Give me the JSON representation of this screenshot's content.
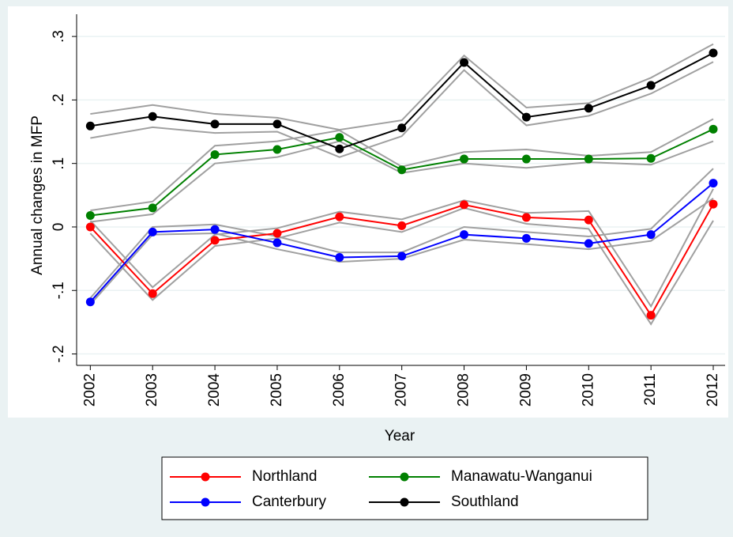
{
  "chart_data": {
    "type": "line",
    "x_label": "Year",
    "y_label": "Annual changes in MFP",
    "x": [
      2002,
      2003,
      2004,
      2005,
      2006,
      2007,
      2008,
      2009,
      2010,
      2011,
      2012
    ],
    "xlim": [
      2001.78,
      2012.19
    ],
    "xticks": [
      2002,
      2003,
      2004,
      2005,
      2006,
      2007,
      2008,
      2009,
      2010,
      2011,
      2012
    ],
    "ylim": [
      -0.218,
      0.335
    ],
    "yticks": [
      {
        "value": -0.2,
        "label": "-.2"
      },
      {
        "value": -0.1,
        "label": "-.1"
      },
      0,
      {
        "value": 0.1,
        "label": ".1"
      },
      {
        "value": 0.2,
        "label": ".2"
      },
      {
        "value": 0.3,
        "label": ".3"
      }
    ],
    "grid": true,
    "band_color": "#a0a0a0",
    "legend": "bottom",
    "series": [
      {
        "name": "Northland",
        "color": "#ff0000",
        "values": [
          0.0,
          -0.105,
          -0.021,
          -0.01,
          0.016,
          0.002,
          0.035,
          0.015,
          0.011,
          -0.139,
          0.036
        ],
        "lower": [
          -0.01,
          -0.115,
          -0.03,
          -0.018,
          0.007,
          -0.008,
          0.03,
          0.005,
          -0.003,
          -0.153,
          0.01
        ],
        "upper": [
          0.01,
          -0.095,
          -0.012,
          -0.002,
          0.024,
          0.012,
          0.042,
          0.022,
          0.025,
          -0.125,
          0.06
        ]
      },
      {
        "name": "Manawatu-Wanganui",
        "color": "#008000",
        "values": [
          0.018,
          0.03,
          0.114,
          0.122,
          0.141,
          0.09,
          0.107,
          0.107,
          0.107,
          0.108,
          0.154
        ],
        "lower": [
          0.008,
          0.02,
          0.1,
          0.11,
          0.135,
          0.085,
          0.1,
          0.093,
          0.102,
          0.098,
          0.135
        ],
        "upper": [
          0.026,
          0.04,
          0.128,
          0.135,
          0.152,
          0.095,
          0.118,
          0.122,
          0.112,
          0.118,
          0.17
        ]
      },
      {
        "name": "Canterbury",
        "color": "#0000ff",
        "values": [
          -0.118,
          -0.008,
          -0.004,
          -0.025,
          -0.048,
          -0.046,
          -0.012,
          -0.018,
          -0.026,
          -0.012,
          0.069
        ],
        "lower": [
          -0.122,
          -0.012,
          -0.01,
          -0.035,
          -0.055,
          -0.05,
          -0.02,
          -0.027,
          -0.035,
          -0.022,
          0.045
        ],
        "upper": [
          -0.112,
          0.0,
          0.004,
          -0.015,
          -0.04,
          -0.04,
          0.0,
          -0.008,
          -0.015,
          -0.003,
          0.092
        ]
      },
      {
        "name": "Southland",
        "color": "#000000",
        "values": [
          0.159,
          0.174,
          0.162,
          0.162,
          0.123,
          0.156,
          0.259,
          0.173,
          0.187,
          0.223,
          0.274
        ],
        "lower": [
          0.14,
          0.157,
          0.148,
          0.15,
          0.11,
          0.143,
          0.247,
          0.16,
          0.175,
          0.21,
          0.26
        ],
        "upper": [
          0.178,
          0.192,
          0.178,
          0.172,
          0.153,
          0.168,
          0.27,
          0.188,
          0.195,
          0.235,
          0.288
        ]
      }
    ]
  }
}
